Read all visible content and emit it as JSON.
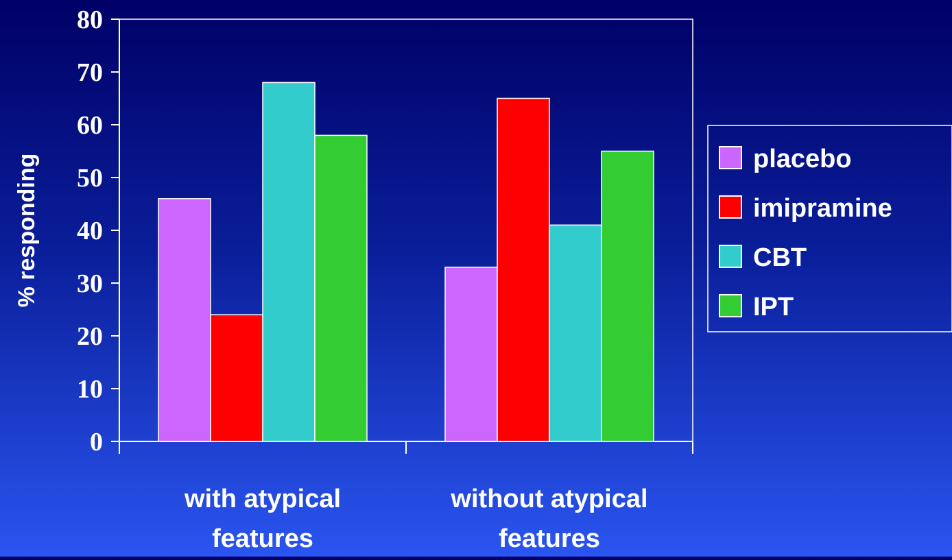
{
  "chart_data": {
    "type": "bar",
    "title": "",
    "xlabel": "",
    "ylabel": "% responding",
    "ylim": [
      0,
      80
    ],
    "yticks": [
      0,
      10,
      20,
      30,
      40,
      50,
      60,
      70,
      80
    ],
    "categories": [
      [
        "with atypical",
        "features"
      ],
      [
        "without atypical",
        "features"
      ]
    ],
    "series": [
      {
        "name": "placebo",
        "color": "#cc66ff",
        "values": [
          46,
          33
        ]
      },
      {
        "name": "imipramine",
        "color": "#ff0000",
        "values": [
          24,
          65
        ]
      },
      {
        "name": "CBT",
        "color": "#33cccc",
        "values": [
          68,
          41
        ]
      },
      {
        "name": "IPT",
        "color": "#33cc33",
        "values": [
          58,
          55
        ]
      }
    ],
    "grid": false,
    "legend_position": "right"
  }
}
